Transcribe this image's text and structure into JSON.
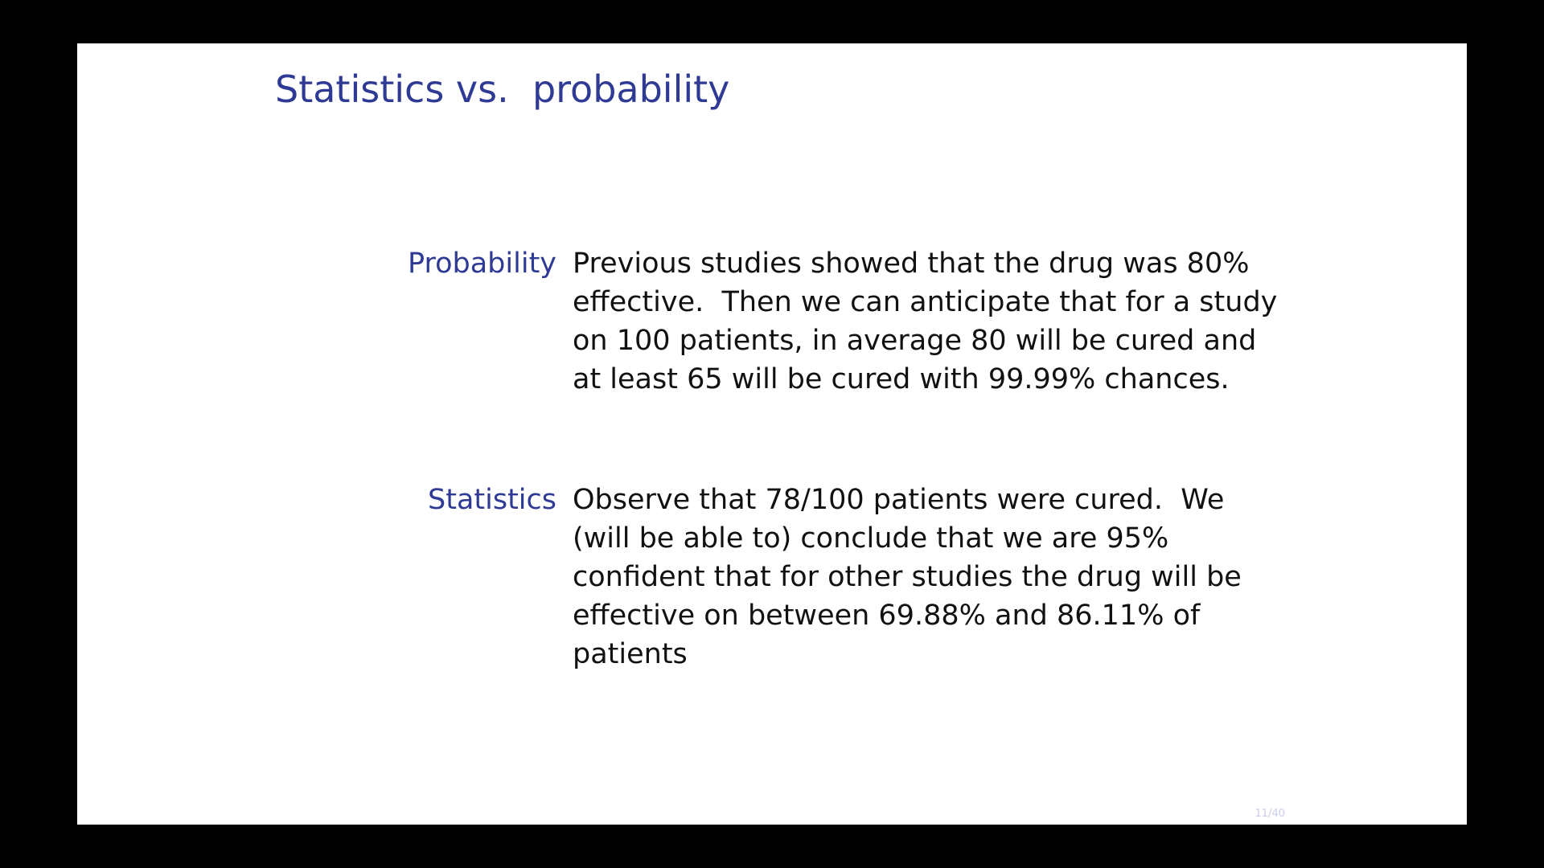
{
  "slide": {
    "title": "Statistics vs.  probability",
    "page_number": "11/40"
  },
  "definitions": [
    {
      "term": "Probability",
      "text": "Previous studies showed that the drug was 80% effective.  Then we can anticipate that for a study on 100 patients, in average 80 will be cured and at least 65 will be cured with 99.99% chances."
    },
    {
      "term": "Statistics",
      "text": "Observe that 78/100 patients were cured.  We (will be able to) conclude that we are 95% confident that for other studies the drug will be effective on between 69.88% and 86.11% of patients"
    }
  ],
  "colors": {
    "accent": "#2f3a94",
    "text": "#111111",
    "background": "#ffffff",
    "frame": "#000000"
  }
}
